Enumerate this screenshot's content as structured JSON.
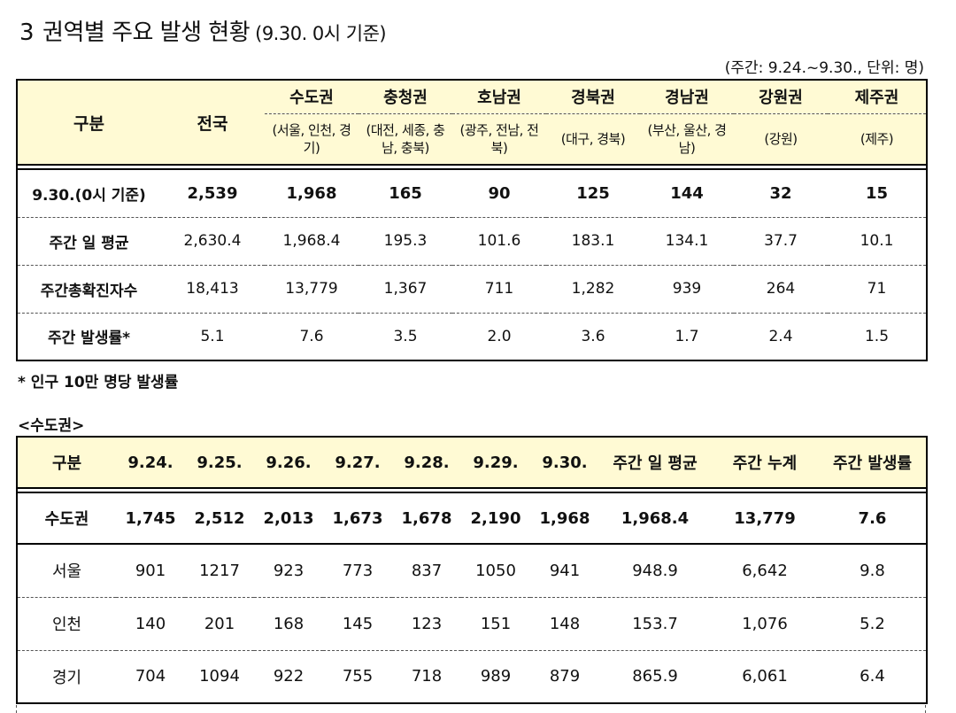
{
  "title": {
    "number": "3",
    "text": "권역별 주요 발생 현황",
    "subtitle": "(9.30. 0시 기준)"
  },
  "unit_note": "(주간: 9.24.~9.30., 단위: 명)",
  "regional_table": {
    "header_label": "구분",
    "national_label": "전국",
    "regions": [
      {
        "name": "수도권",
        "sub": "(서울, 인천, 경기)"
      },
      {
        "name": "충청권",
        "sub": "(대전, 세종, 충남, 충북)"
      },
      {
        "name": "호남권",
        "sub": "(광주, 전남, 전북)"
      },
      {
        "name": "경북권",
        "sub": "(대구, 경북)"
      },
      {
        "name": "경남권",
        "sub": "(부산, 울산, 경남)"
      },
      {
        "name": "강원권",
        "sub": "(강원)"
      },
      {
        "name": "제주권",
        "sub": "(제주)"
      }
    ],
    "rows": [
      {
        "label": "9.30.(0시 기준)",
        "values": [
          "2,539",
          "1,968",
          "165",
          "90",
          "125",
          "144",
          "32",
          "15"
        ]
      },
      {
        "label": "주간 일 평균",
        "values": [
          "2,630.4",
          "1,968.4",
          "195.3",
          "101.6",
          "183.1",
          "134.1",
          "37.7",
          "10.1"
        ]
      },
      {
        "label": "주간총확진자수",
        "values": [
          "18,413",
          "13,779",
          "1,367",
          "711",
          "1,282",
          "939",
          "264",
          "71"
        ]
      },
      {
        "label": "주간 발생률*",
        "values": [
          "5.1",
          "7.6",
          "3.5",
          "2.0",
          "3.6",
          "1.7",
          "2.4",
          "1.5"
        ]
      }
    ]
  },
  "footnote": "* 인구 10만 명당 발생률",
  "section_label": "<수도권>",
  "capital_table": {
    "headers": [
      "구분",
      "9.24.",
      "9.25.",
      "9.26.",
      "9.27.",
      "9.28.",
      "9.29.",
      "9.30.",
      "주간 일 평균",
      "주간 누계",
      "주간 발생률"
    ],
    "rows": [
      {
        "label": "수도권",
        "values": [
          "1,745",
          "2,512",
          "2,013",
          "1,673",
          "1,678",
          "2,190",
          "1,968",
          "1,968.4",
          "13,779",
          "7.6"
        ]
      },
      {
        "label": "서울",
        "values": [
          "901",
          "1217",
          "923",
          "773",
          "837",
          "1050",
          "941",
          "948.9",
          "6,642",
          "9.8"
        ]
      },
      {
        "label": "인천",
        "values": [
          "140",
          "201",
          "168",
          "145",
          "123",
          "151",
          "148",
          "153.7",
          "1,076",
          "5.2"
        ]
      },
      {
        "label": "경기",
        "values": [
          "704",
          "1094",
          "922",
          "755",
          "718",
          "989",
          "879",
          "865.9",
          "6,061",
          "6.4"
        ]
      }
    ]
  }
}
